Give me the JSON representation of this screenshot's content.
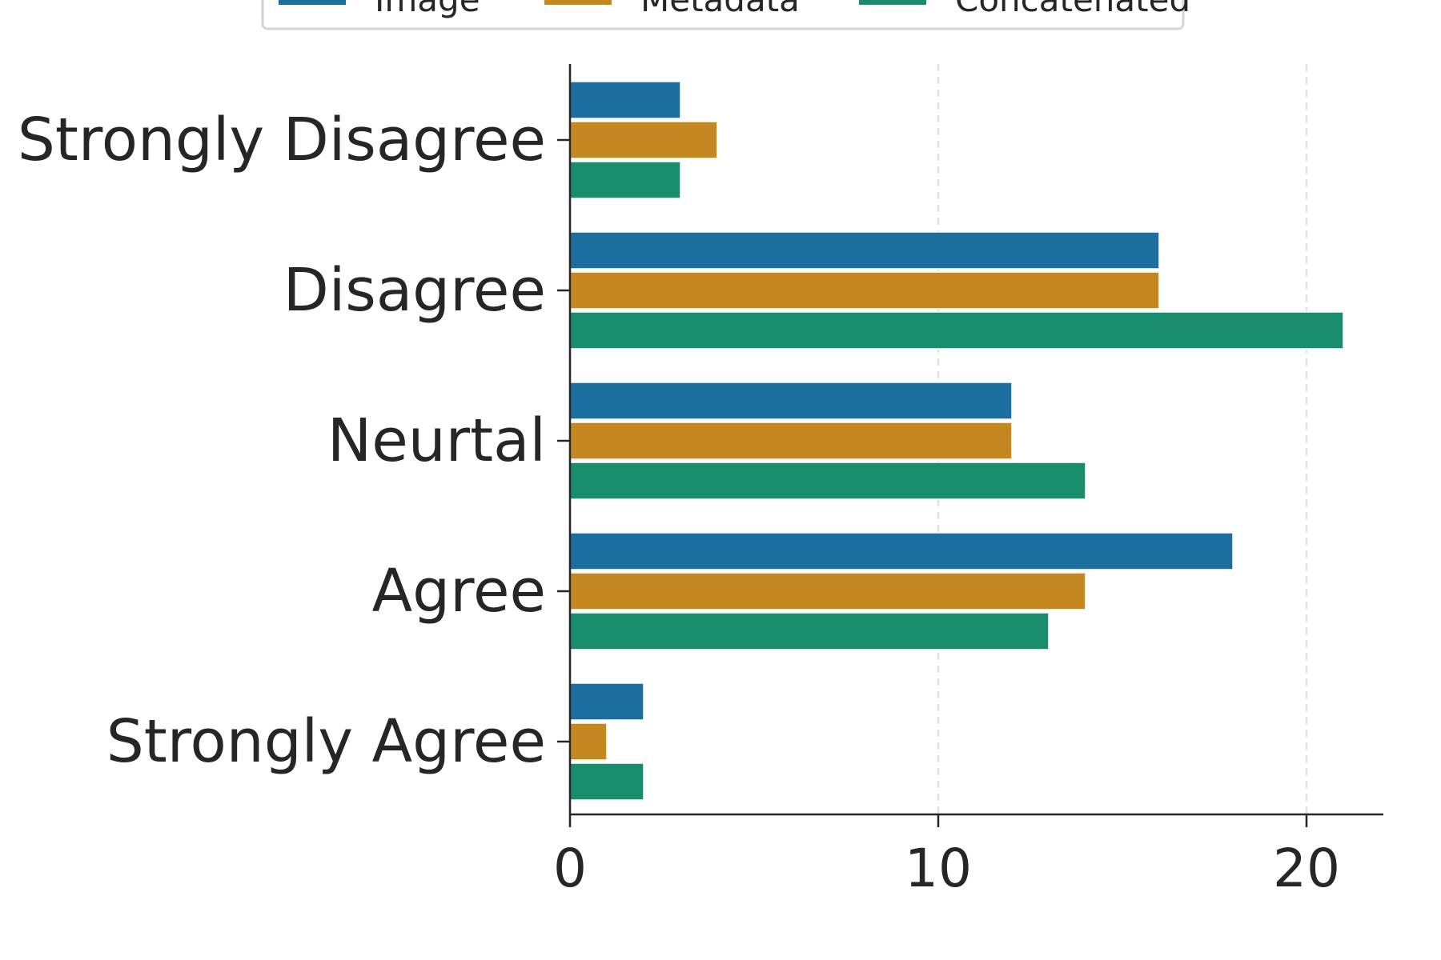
{
  "chart_data": {
    "type": "bar",
    "orientation": "horizontal",
    "categories": [
      "Strongly Disagree",
      "Disagree",
      "Neurtal",
      "Agree",
      "Strongly Agree"
    ],
    "series": [
      {
        "name": "Image",
        "color": "#1a6f9e",
        "values": [
          3,
          16,
          12,
          18,
          2
        ]
      },
      {
        "name": "Metadata",
        "color": "#c58821",
        "values": [
          4,
          16,
          12,
          14,
          1
        ]
      },
      {
        "name": "Concatenated",
        "color": "#178d6b",
        "values": [
          3,
          21,
          14,
          13,
          2
        ]
      }
    ],
    "xlim": [
      0,
      22
    ],
    "xticks": [
      0,
      10,
      20
    ],
    "grid": "vertical dashed",
    "legend_position": "top"
  }
}
